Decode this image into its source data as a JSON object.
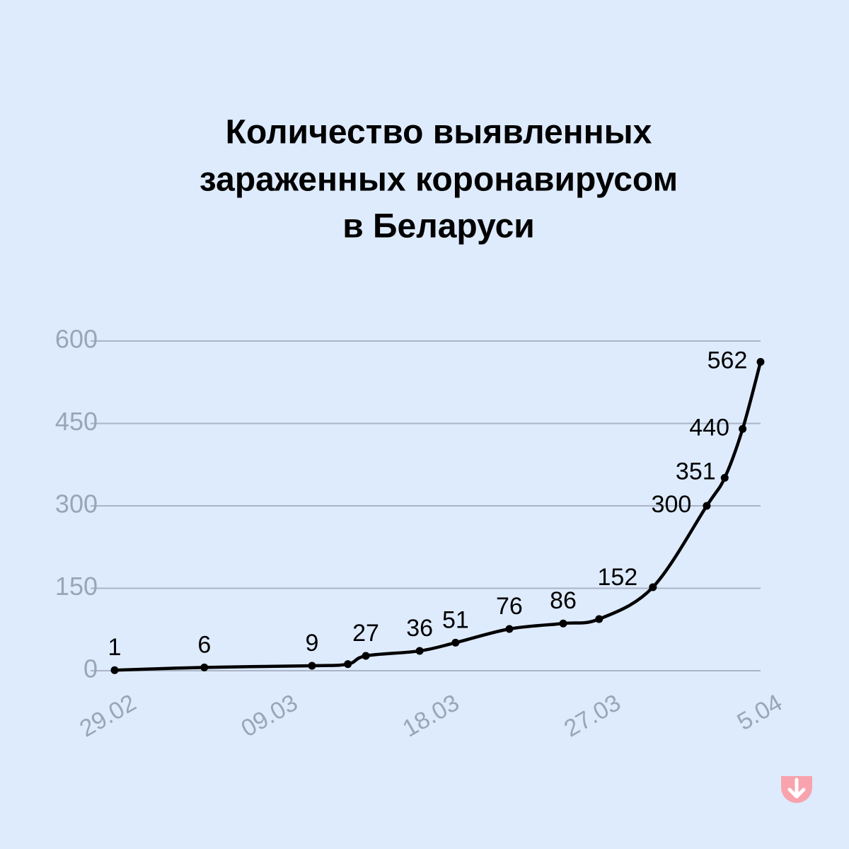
{
  "chart_data": {
    "type": "line",
    "title": [
      "Количество выявленных",
      "зараженных коронавирусом",
      "в Беларуси"
    ],
    "x": [
      0,
      5,
      11,
      13,
      14,
      17,
      19,
      22,
      25,
      27,
      30,
      33,
      34,
      35,
      36
    ],
    "values": [
      1,
      6,
      9,
      12,
      27,
      36,
      51,
      76,
      86,
      94,
      152,
      300,
      351,
      440,
      562
    ],
    "value_labels": [
      "1",
      "6",
      "9",
      null,
      "27",
      "36",
      "51",
      "76",
      "86",
      null,
      "152",
      "300",
      "351",
      "440",
      "562"
    ],
    "color": "#000000",
    "xlim": [
      0,
      36
    ],
    "xticks": [
      {
        "value": 0,
        "label": "29.02"
      },
      {
        "value": 9,
        "label": "09.03"
      },
      {
        "value": 18,
        "label": "18.03"
      },
      {
        "value": 27,
        "label": "27.03"
      },
      {
        "value": 36,
        "label": "5.04"
      }
    ],
    "ylim": [
      0,
      600
    ],
    "yticks": [
      0,
      150,
      300,
      450,
      600
    ],
    "grid": true
  }
}
